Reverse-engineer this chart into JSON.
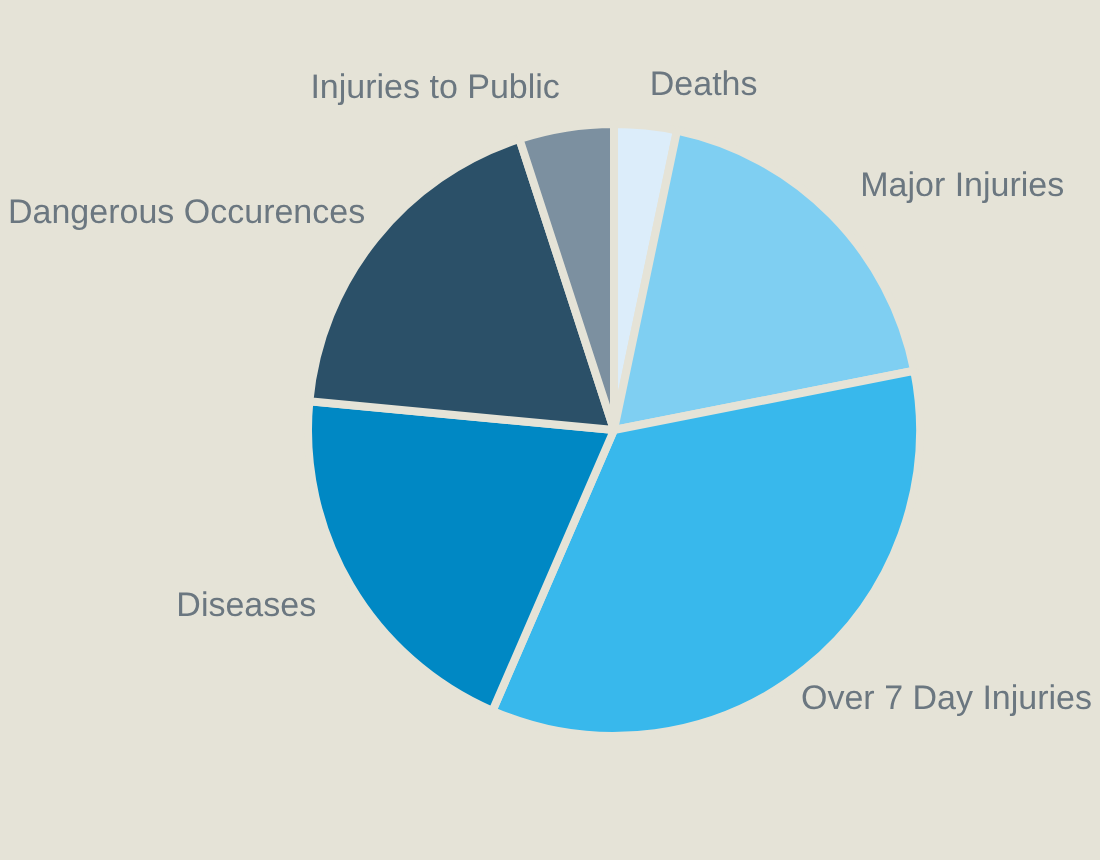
{
  "chart_data": {
    "type": "pie",
    "categories": [
      "Deaths",
      "Major Injuries",
      "Over 7 Day Injuries",
      "Diseases",
      "Dangerous Occurences",
      "Injuries to Public"
    ],
    "values": [
      3.3,
      18.6,
      34.6,
      20,
      18.5,
      5
    ],
    "colors": [
      "#dcedfa",
      "#7fcff2",
      "#38b8ec",
      "#0088c4",
      "#2b5068",
      "#7c90a0"
    ]
  }
}
